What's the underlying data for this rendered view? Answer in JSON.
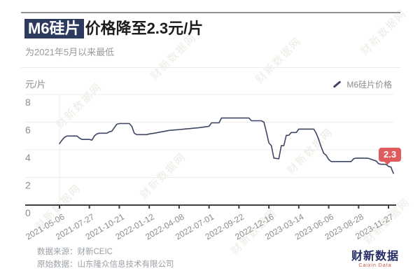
{
  "header": {
    "title_highlight": "M6硅片",
    "title_rest": "价格降至2.3元/片",
    "subtitle": "为2021年5月以来最低"
  },
  "legend": {
    "label": "M6硅片价格"
  },
  "y_axis": {
    "unit": "元/片"
  },
  "badge": {
    "value": "2.3"
  },
  "footer": {
    "source_line": "数据来源：财新CEIC",
    "original_line": "原始数据：山东隆众信息技术有限公司"
  },
  "logo": {
    "text": "财新数据",
    "subtext": "Caixin Data"
  },
  "watermark": {
    "text": "财新数据网"
  },
  "colors": {
    "line": "#3f4663",
    "grid": "#ededed",
    "axis": "#3f3f3f",
    "axis_label": "#8c8c8c",
    "badge_bg": "#e05c5c",
    "title_highlight_bg": "#2c3a5e"
  },
  "chart_data": {
    "type": "line",
    "title": "M6硅片价格降至2.3元/片",
    "subtitle": "为2021年5月以来最低",
    "series_name": "M6硅片价格",
    "ylabel": "元/片",
    "ylim": [
      0,
      8
    ],
    "y_ticks": [
      8,
      6,
      4,
      2,
      0
    ],
    "grid": true,
    "legend_position": "top-right",
    "x_tick_labels": [
      "2021-05-06",
      "2021-07-27",
      "2021-10-21",
      "2022-01-12",
      "2022-04-08",
      "2022-07-01",
      "2022-09-22",
      "2022-12-16",
      "2023-03-14",
      "2023-06-06",
      "2023-08-28",
      "2023-11-27"
    ],
    "weeks_per_tick": 12,
    "end_label": "2.3",
    "points_unit": "[weeks since 2021-05-06, price 元/片]",
    "points": [
      [
        0,
        4.45
      ],
      [
        1,
        4.7
      ],
      [
        2,
        4.9
      ],
      [
        3,
        5.0
      ],
      [
        7,
        5.0
      ],
      [
        8,
        4.85
      ],
      [
        9,
        4.75
      ],
      [
        12,
        4.75
      ],
      [
        13,
        4.7
      ],
      [
        14,
        5.0
      ],
      [
        15,
        5.15
      ],
      [
        16,
        5.2
      ],
      [
        19,
        5.2
      ],
      [
        20,
        5.3
      ],
      [
        21,
        5.35
      ],
      [
        22,
        5.6
      ],
      [
        23,
        5.85
      ],
      [
        24,
        5.9
      ],
      [
        28,
        5.9
      ],
      [
        29,
        5.7
      ],
      [
        30,
        5.2
      ],
      [
        31,
        5.1
      ],
      [
        35,
        5.1
      ],
      [
        36,
        5.15
      ],
      [
        38,
        5.2
      ],
      [
        41,
        5.3
      ],
      [
        44,
        5.4
      ],
      [
        47,
        5.45
      ],
      [
        50,
        5.5
      ],
      [
        53,
        5.55
      ],
      [
        56,
        5.6
      ],
      [
        58,
        5.65
      ],
      [
        60,
        5.7
      ],
      [
        61,
        5.95
      ],
      [
        64,
        5.95
      ],
      [
        65,
        6.3
      ],
      [
        76,
        6.3
      ],
      [
        77,
        6.1
      ],
      [
        81,
        6.1
      ],
      [
        82,
        6.0
      ],
      [
        83,
        5.3
      ],
      [
        84,
        4.5
      ],
      [
        85,
        4.3
      ],
      [
        86,
        3.4
      ],
      [
        88,
        3.35
      ],
      [
        89,
        4.3
      ],
      [
        90,
        4.3
      ],
      [
        91,
        5.05
      ],
      [
        92,
        5.05
      ],
      [
        93,
        5.25
      ],
      [
        95,
        5.25
      ],
      [
        96,
        5.5
      ],
      [
        102,
        5.5
      ],
      [
        103,
        5.2
      ],
      [
        104,
        4.75
      ],
      [
        105,
        4.2
      ],
      [
        106,
        3.75
      ],
      [
        107,
        3.6
      ],
      [
        108,
        3.3
      ],
      [
        109,
        3.15
      ],
      [
        117,
        3.15
      ],
      [
        118,
        3.35
      ],
      [
        119,
        3.4
      ],
      [
        122,
        3.4
      ],
      [
        124,
        3.38
      ],
      [
        126,
        3.25
      ],
      [
        127,
        3.2
      ],
      [
        128,
        3.0
      ],
      [
        129,
        2.95
      ],
      [
        131,
        2.95
      ],
      [
        132,
        2.8
      ],
      [
        133,
        2.75
      ],
      [
        133.5,
        2.5
      ],
      [
        134,
        2.3
      ]
    ]
  }
}
